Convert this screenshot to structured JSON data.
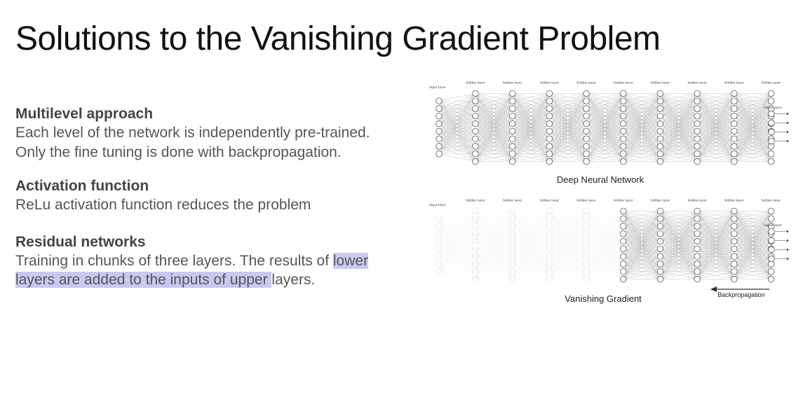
{
  "slide": {
    "title": "Solutions to the Vanishing Gradient Problem"
  },
  "sections": [
    {
      "heading": "Multilevel approach",
      "body": "Each level of the network is independently pre-trained. Only the fine tuning is done with backpropagation."
    },
    {
      "heading": "Activation function",
      "body": "ReLu activation function reduces the problem"
    },
    {
      "heading": "Residual networks",
      "body_plain": "Training in chunks of three layers. The results of ",
      "body_highlight": "lower layers are added to the inputs of upper ",
      "body_tail": "layers."
    }
  ],
  "diagram": {
    "input_label": "input layer",
    "hidden_label": "hidden layer",
    "output_label": "output layer",
    "top_caption": "Deep Neural Network",
    "bottom_caption": "Vanishing Gradient",
    "backprop_label": "Backpropagation",
    "hidden_layer_count": 9,
    "input_nodes": 8,
    "hidden_nodes": 10,
    "output_nodes": 4,
    "faded_layers_bottom": 5
  }
}
